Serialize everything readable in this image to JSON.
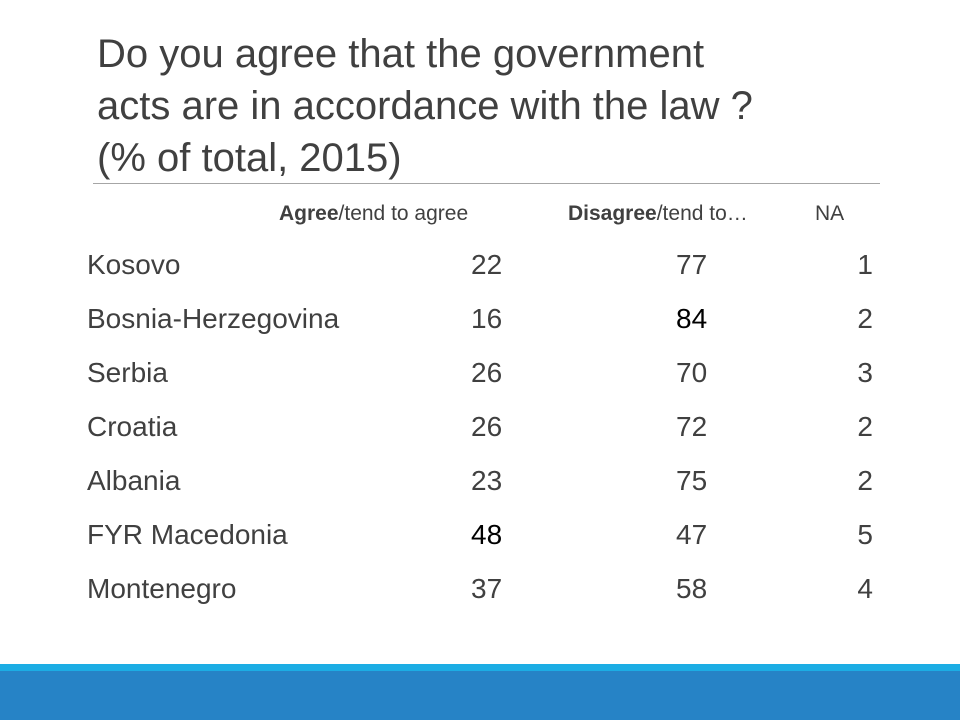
{
  "slide": {
    "title_lines": [
      "Do you agree that the government",
      "acts are in accordance with the law ?",
      "(% of total, 2015)"
    ]
  },
  "table": {
    "headers": {
      "agree_bold": "Agree",
      "agree_rest": "/tend to agree",
      "disagree_bold": "Disagree",
      "disagree_rest": "/tend to…",
      "na": "NA"
    },
    "rows": [
      {
        "country": "Kosovo",
        "agree": "22",
        "disagree": "77",
        "na": "1"
      },
      {
        "country": "Bosnia-Herzegovina",
        "agree": "16",
        "disagree": "84",
        "na": "2"
      },
      {
        "country": "Serbia",
        "agree": "26",
        "disagree": "70",
        "na": "3"
      },
      {
        "country": "Croatia",
        "agree": "26",
        "disagree": "72",
        "na": "2"
      },
      {
        "country": "Albania",
        "agree": "23",
        "disagree": "75",
        "na": "2"
      },
      {
        "country": "FYR Macedonia",
        "agree": "48",
        "disagree": "47",
        "na": "5"
      },
      {
        "country": "Montenegro",
        "agree": "37",
        "disagree": "58",
        "na": "4"
      }
    ]
  },
  "colors": {
    "text": "#404040",
    "band_light": "#1cade4",
    "band_dark": "#2683c6"
  }
}
